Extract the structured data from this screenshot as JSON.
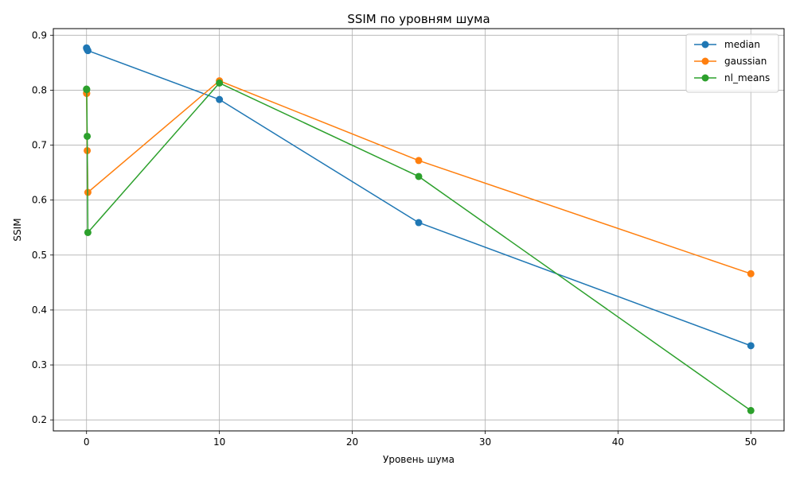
{
  "chart_data": {
    "type": "line",
    "title": "SSIM по уровням шума",
    "xlabel": "Уровень шума",
    "ylabel": "SSIM",
    "xlim": [
      -2.5,
      52.5
    ],
    "ylim": [
      0.18,
      0.912
    ],
    "xticks": [
      0,
      10,
      20,
      30,
      40,
      50
    ],
    "yticks": [
      0.2,
      0.3,
      0.4,
      0.5,
      0.6,
      0.7,
      0.8,
      0.9
    ],
    "xtick_labels": [
      "0",
      "10",
      "20",
      "30",
      "40",
      "50"
    ],
    "ytick_labels": [
      "0.2",
      "0.3",
      "0.4",
      "0.5",
      "0.6",
      "0.7",
      "0.8",
      "0.9"
    ],
    "grid": true,
    "legend_position": "top-right",
    "series": [
      {
        "name": "median",
        "color": "#1f77b4",
        "x": [
          0,
          0.01,
          0.05,
          0.1,
          10,
          25,
          50
        ],
        "y": [
          0.877,
          0.876,
          0.874,
          0.872,
          0.783,
          0.559,
          0.335
        ]
      },
      {
        "name": "gaussian",
        "color": "#ff7f0e",
        "x": [
          0,
          0.01,
          0.05,
          0.1,
          10,
          25,
          50
        ],
        "y": [
          0.795,
          0.794,
          0.69,
          0.614,
          0.817,
          0.672,
          0.466
        ]
      },
      {
        "name": "nl_means",
        "color": "#2ca02c",
        "x": [
          0,
          0.01,
          0.05,
          0.1,
          10,
          25,
          50
        ],
        "y": [
          0.802,
          0.801,
          0.716,
          0.541,
          0.813,
          0.643,
          0.217
        ]
      }
    ]
  }
}
